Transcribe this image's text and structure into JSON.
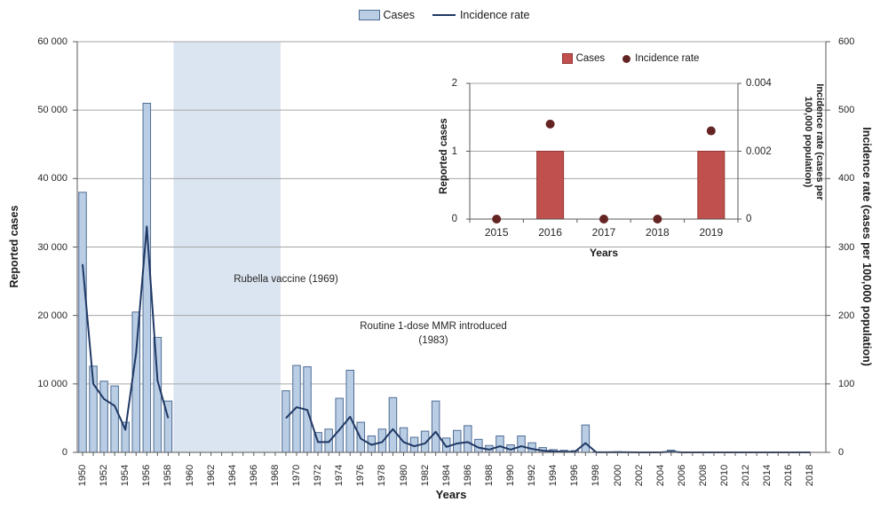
{
  "colors": {
    "bar_fill": "#b9cde5",
    "bar_border": "#4f6d94",
    "line": "#1f3864",
    "shaded_band": "#dbe5f1",
    "gridline": "#a6a6a6",
    "axis": "#595959",
    "inset_bar_fill": "#c0504d",
    "inset_bar_border": "#943634",
    "inset_dot": "#632423",
    "text": "#262626"
  },
  "main_legend": {
    "cases_label": "Cases",
    "rate_label": "Incidence rate"
  },
  "main_chart": {
    "y_left": {
      "title": "Reported cases",
      "ticks": [
        "0",
        "10 000",
        "20 000",
        "30 000",
        "40 000",
        "50 000",
        "60 000"
      ]
    },
    "y_right": {
      "title": "Incidence rate (cases per 100,000 population)",
      "ticks": [
        "0",
        "100",
        "200",
        "300",
        "400",
        "500",
        "600"
      ]
    },
    "x": {
      "title": "Years",
      "tick_years": [
        1950,
        1952,
        1954,
        1956,
        1958,
        1960,
        1962,
        1964,
        1966,
        1968,
        1970,
        1972,
        1974,
        1976,
        1978,
        1980,
        1982,
        1984,
        1986,
        1988,
        1990,
        1992,
        1994,
        1996,
        1998,
        2000,
        2002,
        2004,
        2006,
        2008,
        2010,
        2012,
        2014,
        2016,
        2018
      ]
    },
    "annotations": {
      "rubella": "Rubella vaccine (1969)",
      "mmr_line1": "Routine 1-dose MMR introduced",
      "mmr_line2": "(1983)"
    }
  },
  "inset": {
    "legend": {
      "cases_label": "Cases",
      "rate_label": "Incidence rate"
    },
    "y_left": {
      "title": "Reported cases",
      "ticks": [
        "0",
        "1",
        "2"
      ]
    },
    "y_right": {
      "title_lines": [
        "Incidence rate (cases per",
        "100,000 population)"
      ],
      "ticks": [
        "0",
        "0.002",
        "0.004"
      ]
    },
    "x": {
      "title": "Years"
    }
  },
  "chart_data": [
    {
      "type": "bar",
      "subtype": "bar+line combo, dual axis",
      "series": [
        {
          "name": "Cases",
          "axis": "left"
        },
        {
          "name": "Incidence rate",
          "axis": "right"
        }
      ],
      "years": [
        1950,
        1951,
        1952,
        1953,
        1954,
        1955,
        1956,
        1957,
        1958,
        1959,
        1960,
        1961,
        1962,
        1963,
        1964,
        1965,
        1966,
        1967,
        1968,
        1969,
        1970,
        1971,
        1972,
        1973,
        1974,
        1975,
        1976,
        1977,
        1978,
        1979,
        1980,
        1981,
        1982,
        1983,
        1984,
        1985,
        1986,
        1987,
        1988,
        1989,
        1990,
        1991,
        1992,
        1993,
        1994,
        1995,
        1996,
        1997,
        1998,
        1999,
        2000,
        2001,
        2002,
        2003,
        2004,
        2005,
        2006,
        2007,
        2008,
        2009,
        2010,
        2011,
        2012,
        2013,
        2014,
        2015,
        2016,
        2017,
        2018
      ],
      "cases": [
        38000,
        12600,
        10400,
        9700,
        4400,
        20500,
        51000,
        16800,
        7500,
        null,
        null,
        null,
        null,
        null,
        null,
        null,
        null,
        null,
        null,
        9000,
        12700,
        12500,
        2900,
        3400,
        7900,
        12000,
        4400,
        2400,
        3400,
        8000,
        3600,
        2200,
        3100,
        7500,
        2100,
        3200,
        3900,
        1900,
        1000,
        2400,
        1100,
        2400,
        1400,
        700,
        400,
        300,
        250,
        4000,
        70,
        30,
        90,
        30,
        15,
        10,
        10,
        320,
        10,
        10,
        5,
        5,
        5,
        5,
        5,
        3,
        2,
        0,
        1,
        0,
        0
      ],
      "incidence_rate": [
        275,
        100,
        78,
        68,
        33,
        145,
        330,
        105,
        50,
        null,
        null,
        null,
        null,
        null,
        null,
        null,
        null,
        null,
        null,
        50,
        66,
        62,
        15,
        15,
        33,
        52,
        20,
        11,
        15,
        34,
        15,
        9,
        13,
        30,
        8,
        13,
        15,
        7,
        4,
        9,
        4,
        9,
        5,
        2.5,
        1.4,
        1,
        0.8,
        13.5,
        0.2,
        0.1,
        0.3,
        0.1,
        0.05,
        0.03,
        0.03,
        1,
        0.03,
        0.03,
        0.02,
        0.02,
        0.02,
        0.02,
        0.01,
        0.01,
        0.01,
        0,
        0.003,
        0,
        0
      ],
      "ylim_left": [
        0,
        60000
      ],
      "ylim_right": [
        0,
        600
      ],
      "shaded_band_years": [
        1959,
        1968
      ],
      "xlabel": "Years",
      "ylabel_left": "Reported cases",
      "ylabel_right": "Incidence rate (cases per 100,000 population)",
      "grid": "horizontal, every 10000",
      "legend_position": "top center"
    },
    {
      "type": "bar",
      "subtype": "inset bar+scatter, dual axis",
      "series": [
        {
          "name": "Cases",
          "axis": "left"
        },
        {
          "name": "Incidence rate",
          "axis": "right"
        }
      ],
      "years": [
        2015,
        2016,
        2017,
        2018,
        2019
      ],
      "cases": [
        0,
        1,
        0,
        0,
        1
      ],
      "incidence_rate": [
        0,
        0.0028,
        0,
        0,
        0.0026
      ],
      "ylim_left": [
        0,
        2
      ],
      "ylim_right": [
        0,
        0.004
      ],
      "xlabel": "Years",
      "ylabel_left": "Reported cases",
      "ylabel_right": "Incidence rate (cases per 100,000 population)",
      "grid": "horizontal, every 1",
      "legend_position": "top center"
    }
  ]
}
